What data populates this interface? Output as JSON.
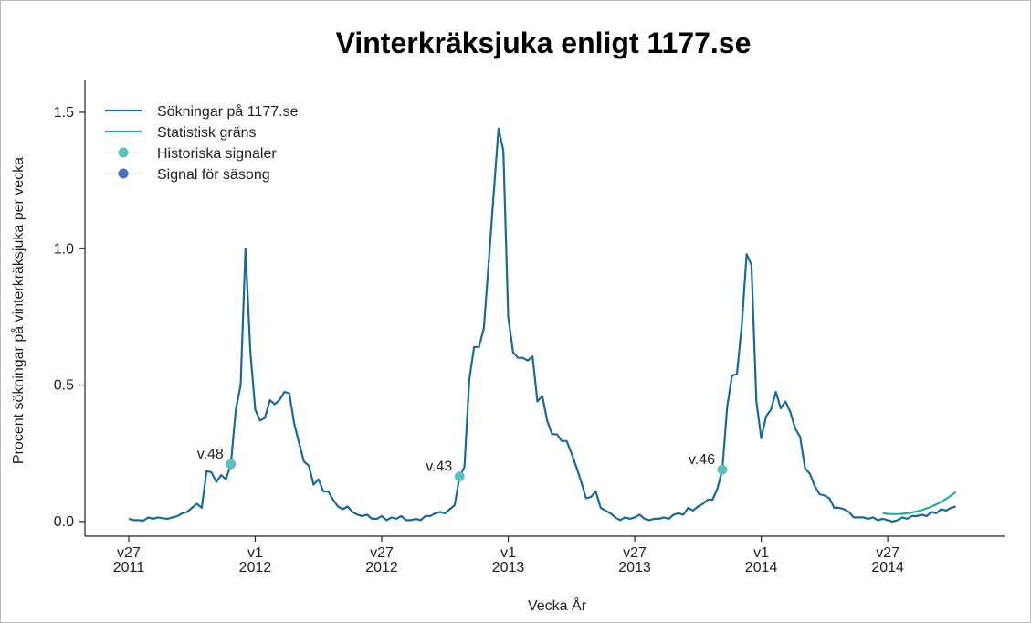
{
  "chart_data": {
    "type": "line",
    "title": "Vinterkräksjuka enligt 1177.se",
    "x_label": "Vecka År",
    "y_label": "Procent sökningar på vinterkräksjuka per vecka",
    "xlim": [
      -9,
      180
    ],
    "ylim": [
      -0.054,
      1.617
    ],
    "yticks": [
      {
        "value": 0,
        "label": "0.0"
      },
      0.5,
      {
        "value": 1,
        "label": "1.0"
      },
      1.5
    ],
    "xticks": [
      {
        "value": 0,
        "label": [
          "v27",
          "2011"
        ]
      },
      {
        "value": 26,
        "label": [
          "v1",
          "2012"
        ]
      },
      {
        "value": 52,
        "label": [
          "v27",
          "2012"
        ]
      },
      {
        "value": 78,
        "label": [
          "v1",
          "2013"
        ]
      },
      {
        "value": 104,
        "label": [
          "v27",
          "2013"
        ]
      },
      {
        "value": 130,
        "label": [
          "v1",
          "2014"
        ]
      },
      {
        "value": 156,
        "label": [
          "v27",
          "2014"
        ]
      }
    ],
    "legend": "top-left",
    "series": [
      {
        "name": "Sökningar på 1177.se",
        "color": "#1a6a96",
        "kind": "line",
        "x": [
          0,
          1,
          2,
          3,
          4,
          5,
          6,
          7,
          8,
          9,
          10,
          11,
          12,
          13,
          14,
          15,
          16,
          17,
          18,
          19,
          20,
          21,
          22,
          23,
          24,
          25,
          26,
          27,
          28,
          29,
          30,
          31,
          32,
          33,
          34,
          35,
          36,
          37,
          38,
          39,
          40,
          41,
          42,
          43,
          44,
          45,
          46,
          47,
          48,
          49,
          50,
          51,
          52,
          53,
          54,
          55,
          56,
          57,
          58,
          59,
          60,
          61,
          62,
          63,
          64,
          65,
          66,
          67,
          68,
          69,
          70,
          71,
          72,
          73,
          74,
          75,
          76,
          77,
          78,
          79,
          80,
          81,
          82,
          83,
          84,
          85,
          86,
          87,
          88,
          89,
          90,
          91,
          92,
          93,
          94,
          95,
          96,
          97,
          98,
          99,
          100,
          101,
          102,
          103,
          104,
          105,
          106,
          107,
          108,
          109,
          110,
          111,
          112,
          113,
          114,
          115,
          116,
          117,
          118,
          119,
          120,
          121,
          122,
          123,
          124,
          125,
          126,
          127,
          128,
          129,
          130,
          131,
          132,
          133,
          134,
          135,
          136,
          137,
          138,
          139,
          140,
          141,
          142,
          143,
          144,
          145,
          146,
          147,
          148,
          149,
          150,
          151,
          152,
          153,
          154,
          155,
          156,
          157,
          158,
          159,
          160,
          161,
          162,
          163,
          164,
          165,
          166,
          167,
          168,
          169,
          170
        ],
        "values": [
          0.01,
          0.005,
          0.005,
          0.003,
          0.015,
          0.01,
          0.015,
          0.012,
          0.01,
          0.015,
          0.02,
          0.03,
          0.035,
          0.05,
          0.065,
          0.05,
          0.185,
          0.18,
          0.145,
          0.17,
          0.155,
          0.21,
          0.41,
          0.5,
          1.0,
          0.62,
          0.41,
          0.37,
          0.38,
          0.445,
          0.43,
          0.445,
          0.475,
          0.47,
          0.36,
          0.29,
          0.22,
          0.205,
          0.135,
          0.155,
          0.11,
          0.11,
          0.08,
          0.055,
          0.045,
          0.055,
          0.035,
          0.025,
          0.02,
          0.025,
          0.01,
          0.01,
          0.02,
          0.005,
          0.015,
          0.01,
          0.02,
          0.005,
          0.005,
          0.01,
          0.005,
          0.02,
          0.02,
          0.03,
          0.035,
          0.03,
          0.045,
          0.06,
          0.165,
          0.2,
          0.52,
          0.64,
          0.64,
          0.71,
          0.95,
          1.2,
          1.44,
          1.36,
          0.75,
          0.62,
          0.6,
          0.6,
          0.59,
          0.605,
          0.44,
          0.46,
          0.37,
          0.32,
          0.32,
          0.295,
          0.295,
          0.25,
          0.2,
          0.145,
          0.085,
          0.09,
          0.11,
          0.05,
          0.04,
          0.03,
          0.015,
          0.005,
          0.015,
          0.01,
          0.015,
          0.025,
          0.01,
          0.005,
          0.01,
          0.01,
          0.015,
          0.01,
          0.025,
          0.03,
          0.025,
          0.05,
          0.04,
          0.055,
          0.065,
          0.08,
          0.08,
          0.12,
          0.19,
          0.42,
          0.535,
          0.54,
          0.72,
          0.98,
          0.94,
          0.44,
          0.305,
          0.385,
          0.41,
          0.475,
          0.415,
          0.44,
          0.4,
          0.34,
          0.31,
          0.195,
          0.175,
          0.13,
          0.1,
          0.095,
          0.085,
          0.05,
          0.05,
          0.045,
          0.035,
          0.015,
          0.015,
          0.015,
          0.01,
          0.015,
          0.005,
          0.01,
          0.005,
          0.0,
          0.005,
          0.015,
          0.01,
          0.02,
          0.02,
          0.025,
          0.02,
          0.035,
          0.03,
          0.045,
          0.04,
          0.05,
          0.055
        ]
      },
      {
        "name": "Statistisk gräns",
        "color": "#2aa8a8",
        "kind": "line",
        "x": [
          155,
          156,
          157,
          158,
          159,
          160,
          161,
          162,
          163,
          164,
          165,
          166,
          167,
          168,
          169,
          170
        ],
        "values": [
          0.03,
          0.028,
          0.027,
          0.027,
          0.028,
          0.03,
          0.033,
          0.037,
          0.042,
          0.048,
          0.055,
          0.063,
          0.072,
          0.083,
          0.095,
          0.108
        ]
      },
      {
        "name": "Historiska signaler",
        "color": "#5cc0c0",
        "kind": "points",
        "x": [
          21,
          68,
          122
        ],
        "values": [
          0.21,
          0.165,
          0.19
        ],
        "value_labels": [
          "v.48",
          "v.43",
          "v.46"
        ]
      },
      {
        "name": "Signal för säsong",
        "color": "#4a72b8",
        "kind": "points",
        "x": [],
        "values": []
      }
    ]
  }
}
